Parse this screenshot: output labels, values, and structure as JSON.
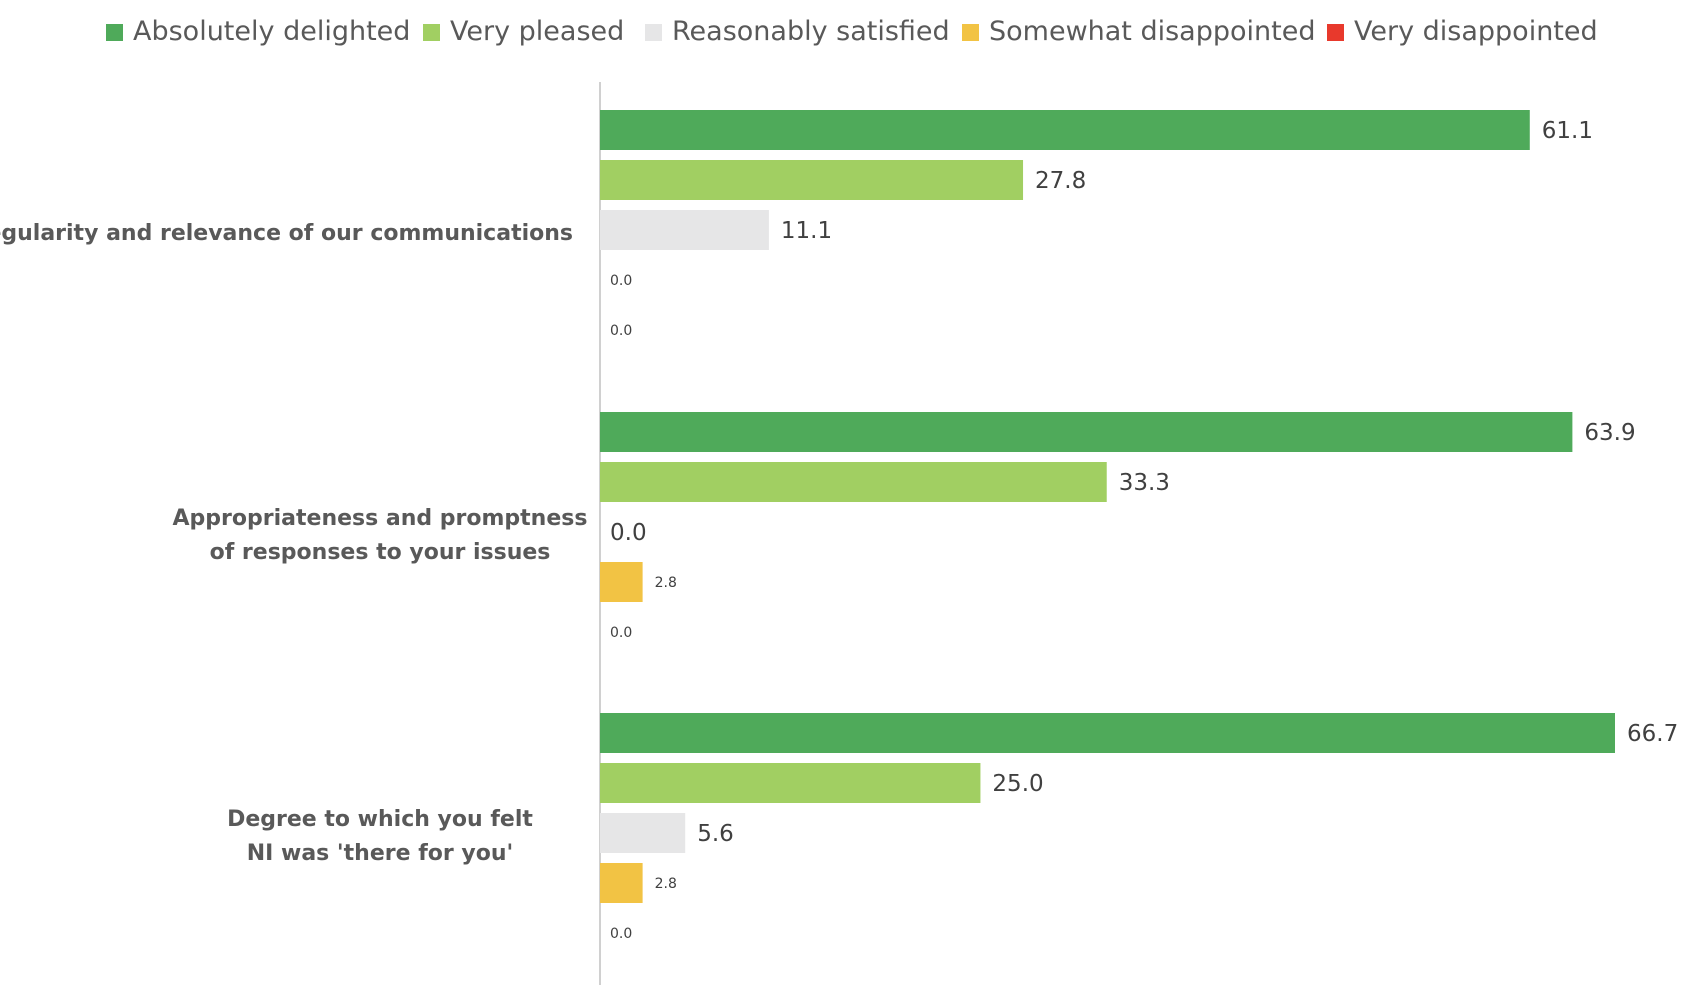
{
  "chart_data": {
    "type": "bar",
    "orientation": "horizontal",
    "categories": [
      [
        "Regularity and relevance of our communications"
      ],
      [
        "Appropriateness and promptness",
        "of responses to your issues"
      ],
      [
        "Degree to which you felt",
        "NI was 'there for you'"
      ]
    ],
    "series": [
      {
        "name": "Absolutely delighted",
        "color": "#4FAA5A",
        "values": [
          61.1,
          63.9,
          66.7
        ],
        "labels": [
          "61.1",
          "63.9",
          "66.7"
        ]
      },
      {
        "name": "Very pleased",
        "color": "#A1CF62",
        "values": [
          27.8,
          33.3,
          25.0
        ],
        "labels": [
          "27.8",
          "33.3",
          "25.0"
        ]
      },
      {
        "name": "Reasonably satisfied",
        "color": "#E6E6E7",
        "values": [
          11.1,
          0.0,
          5.6
        ],
        "labels": [
          "11.1",
          "0.0",
          "5.6"
        ]
      },
      {
        "name": "Somewhat disappointed",
        "color": "#F2C344",
        "values": [
          0.0,
          2.8,
          2.8
        ],
        "labels": [
          "0.0",
          "2.8",
          "2.8"
        ]
      },
      {
        "name": "Very disappointed",
        "color": "#E8392C",
        "values": [
          0.0,
          0.0,
          0.0
        ],
        "labels": [
          "0.0",
          "0.0",
          "0.0"
        ]
      }
    ],
    "label_size": [
      [
        "big",
        "big",
        "big"
      ],
      [
        "big",
        "big",
        "big"
      ],
      [
        "big",
        "big",
        "big"
      ],
      [
        "small",
        "small",
        "small"
      ],
      [
        "small",
        "small",
        "small"
      ]
    ],
    "xlim": [
      0,
      70
    ],
    "legend_position": "top",
    "grid": false
  }
}
